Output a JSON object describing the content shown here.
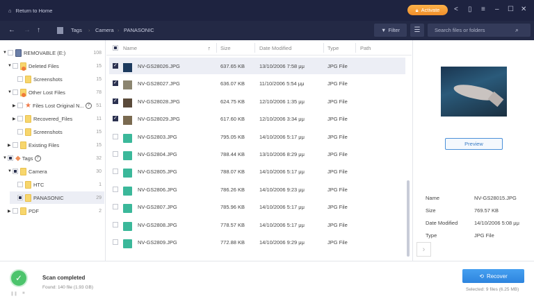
{
  "titlebar": {
    "home": "Return to Home",
    "activate": "Activate"
  },
  "toolbar": {
    "breadcrumb": [
      "Tags",
      "Camera",
      "PANASONIC"
    ],
    "filter": "Filter",
    "search_placeholder": "Search files or folders"
  },
  "tree": [
    {
      "label": "REMOVABLE (E:)",
      "count": "108"
    },
    {
      "label": "Deleted Files",
      "count": "15"
    },
    {
      "label": "Screenshots",
      "count": "15"
    },
    {
      "label": "Other Lost Files",
      "count": "78"
    },
    {
      "label": "Files Lost Original N...",
      "count": "51"
    },
    {
      "label": "Recovered_Files",
      "count": "11"
    },
    {
      "label": "Screenshots",
      "count": "15"
    },
    {
      "label": "Existing Files",
      "count": "15"
    },
    {
      "label": "Tags",
      "count": "32"
    },
    {
      "label": "Camera",
      "count": "30"
    },
    {
      "label": "HTC",
      "count": "1"
    },
    {
      "label": "PANASONIC",
      "count": "29"
    },
    {
      "label": "PDF",
      "count": "2"
    }
  ],
  "columns": {
    "name": "Name",
    "size": "Size",
    "date": "Date Modified",
    "type": "Type",
    "path": "Path"
  },
  "files": [
    {
      "name": "NV-GS28026.JPG",
      "size": "637.65 KB",
      "date": "13/10/2006 7:58 μμ",
      "type": "JPG File",
      "checked": true
    },
    {
      "name": "NV-GS28027.JPG",
      "size": "636.07 KB",
      "date": "11/10/2006 5:54 μμ",
      "type": "JPG File",
      "checked": true
    },
    {
      "name": "NV-GS28028.JPG",
      "size": "624.75 KB",
      "date": "12/10/2006 1:35 μμ",
      "type": "JPG File",
      "checked": true
    },
    {
      "name": "NV-GS28029.JPG",
      "size": "617.60 KB",
      "date": "12/10/2006 3:34 μμ",
      "type": "JPG File",
      "checked": true
    },
    {
      "name": "NV-GS2803.JPG",
      "size": "795.05 KB",
      "date": "14/10/2006 5:17 μμ",
      "type": "JPG File",
      "checked": false
    },
    {
      "name": "NV-GS2804.JPG",
      "size": "788.44 KB",
      "date": "13/10/2006 8:29 μμ",
      "type": "JPG File",
      "checked": false
    },
    {
      "name": "NV-GS2805.JPG",
      "size": "788.07 KB",
      "date": "14/10/2006 5:17 μμ",
      "type": "JPG File",
      "checked": false
    },
    {
      "name": "NV-GS2806.JPG",
      "size": "786.26 KB",
      "date": "14/10/2006 9:23 μμ",
      "type": "JPG File",
      "checked": false
    },
    {
      "name": "NV-GS2807.JPG",
      "size": "785.96 KB",
      "date": "14/10/2006 5:17 μμ",
      "type": "JPG File",
      "checked": false
    },
    {
      "name": "NV-GS2808.JPG",
      "size": "778.57 KB",
      "date": "14/10/2006 5:17 μμ",
      "type": "JPG File",
      "checked": false
    },
    {
      "name": "NV-GS2809.JPG",
      "size": "772.88 KB",
      "date": "14/10/2006 9:29 μμ",
      "type": "JPG File",
      "checked": false
    }
  ],
  "preview": {
    "button": "Preview",
    "labels": {
      "name": "Name",
      "size": "Size",
      "date": "Date Modified",
      "type": "Type"
    },
    "values": {
      "name": "NV-GS28015.JPG",
      "size": "769.57 KB",
      "date": "14/10/2006 5:08 μμ",
      "type": "JPG File"
    }
  },
  "status": {
    "title": "Scan completed",
    "found": "Found: 140 file (1.93 GB)",
    "recover": "Recover",
    "selected": "Selected: 9 files (6.25 MB)"
  }
}
